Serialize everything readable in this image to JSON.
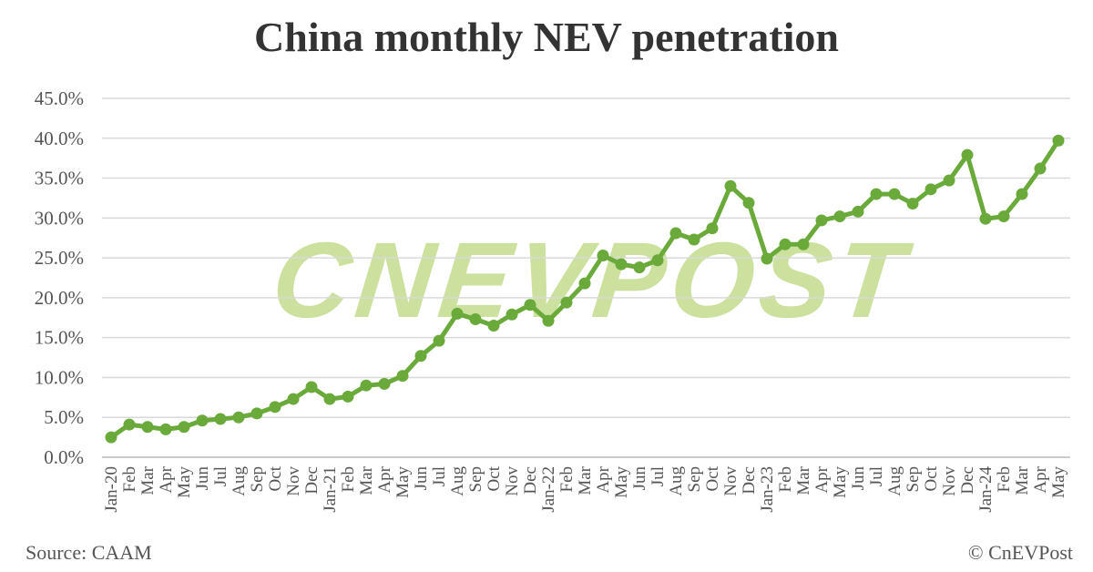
{
  "chart_data": {
    "type": "line",
    "title": "China monthly NEV penetration",
    "xlabel": "",
    "ylabel": "",
    "ylim": [
      0,
      45
    ],
    "yticks": [
      "0.0%",
      "5.0%",
      "10.0%",
      "15.0%",
      "20.0%",
      "25.0%",
      "30.0%",
      "35.0%",
      "40.0%",
      "45.0%"
    ],
    "grid": true,
    "legend": "none",
    "series_color": "#6aaa3a",
    "categories": [
      "Jan-20",
      "Feb",
      "Mar",
      "Apr",
      "May",
      "Jun",
      "Jul",
      "Aug",
      "Sep",
      "Oct",
      "Nov",
      "Dec",
      "Jan-21",
      "Feb",
      "Mar",
      "Apr",
      "May",
      "Jun",
      "Jul",
      "Aug",
      "Sep",
      "Oct",
      "Nov",
      "Dec",
      "Jan-22",
      "Feb",
      "Mar",
      "Apr",
      "May",
      "Jun",
      "Jul",
      "Aug",
      "Sep",
      "Oct",
      "Nov",
      "Dec",
      "Jan-23",
      "Feb",
      "Mar",
      "Apr",
      "May",
      "Jun",
      "Jul",
      "Aug",
      "Sep",
      "Oct",
      "Nov",
      "Dec",
      "Jan-24",
      "Feb",
      "Mar",
      "Apr",
      "May"
    ],
    "values": [
      2.5,
      4.1,
      3.8,
      3.5,
      3.8,
      4.6,
      4.8,
      5.0,
      5.5,
      6.3,
      7.3,
      8.8,
      7.3,
      7.6,
      9.0,
      9.2,
      10.2,
      12.7,
      14.6,
      18.0,
      17.3,
      16.5,
      17.9,
      19.1,
      17.1,
      19.4,
      21.8,
      25.3,
      24.2,
      23.8,
      24.7,
      28.1,
      27.3,
      28.7,
      34.0,
      31.9,
      24.9,
      26.7,
      26.7,
      29.7,
      30.2,
      30.8,
      33.0,
      33.0,
      31.8,
      33.6,
      34.7,
      37.9,
      29.9,
      30.2,
      33.0,
      36.2,
      39.7
    ]
  },
  "footer": {
    "source": "Source: CAAM",
    "credit": "© CnEVPost"
  },
  "watermark": "CNEVPOST"
}
